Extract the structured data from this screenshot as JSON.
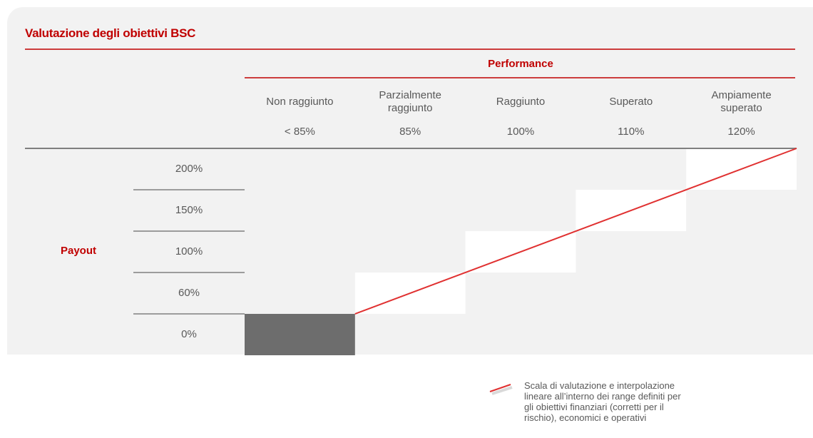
{
  "title": "Valutazione degli obiettivi BSC",
  "performance": {
    "title": "Performance",
    "columns": [
      {
        "label": "Non raggiunto",
        "threshold": "< 85%"
      },
      {
        "label": "Parzialmente raggiunto",
        "threshold": "85%"
      },
      {
        "label": "Raggiunto",
        "threshold": "100%"
      },
      {
        "label": "Superato",
        "threshold": "110%"
      },
      {
        "label": "Ampiamente superato",
        "threshold": "120%"
      }
    ]
  },
  "payout": {
    "title": "Payout",
    "rows": [
      "200%",
      "150%",
      "100%",
      "60%",
      "0%"
    ]
  },
  "legend": "Scala di valutazione  e interpolazione lineare all’interno dei range definiti per gli obiettivi finanziari (corretti per il rischio), economici e operativi"
}
